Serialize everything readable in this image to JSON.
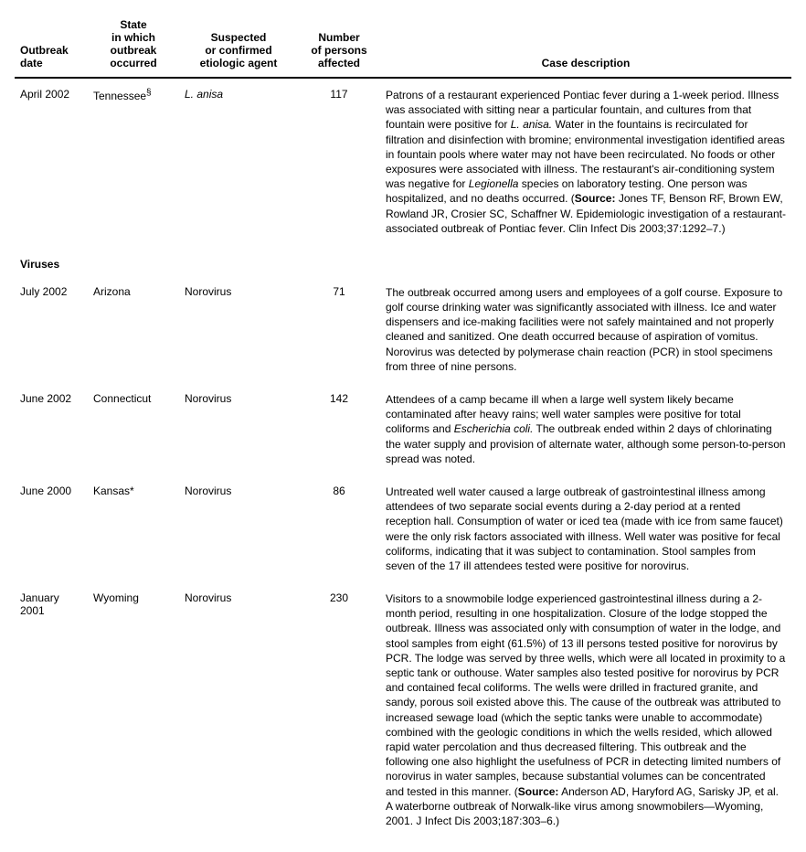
{
  "columns": {
    "date": "Outbreak\ndate",
    "state": "State\nin which\noutbreak\noccurred",
    "agent": "Suspected\nor confirmed\netiologic agent",
    "persons": "Number\nof persons\naffected",
    "desc": "Case description"
  },
  "row1": {
    "date": "April 2002",
    "state": "Tennessee",
    "state_sup": "§",
    "agent": "L. anisa",
    "persons": "117",
    "d1": "Patrons of a restaurant experienced Pontiac fever during a 1-week period. Illness was associated with sitting near a particular fountain, and cultures from that fountain were positive for ",
    "d2": "L. anisa.",
    "d3": " Water in the fountains is recirculated for filtration and disinfection with bromine; environmental investigation identified areas in fountain pools where water may not have been recirculated. No foods or other exposures were associated with illness. The restaurant's air-conditioning system was negative for ",
    "d4": "Legionella",
    "d5": " species on laboratory testing. One person was hospitalized, and no deaths occurred. (",
    "d6": "Source:",
    "d7": " Jones TF, Benson RF, Brown EW, Rowland JR, Crosier SC, Schaffner W. Epidemiologic investigation of a restaurant-associated outbreak of Pontiac fever. Clin Infect Dis 2003;37:1292–7.)"
  },
  "section_viruses": "Viruses",
  "row2": {
    "date": "July 2002",
    "state": "Arizona",
    "agent": "Norovirus",
    "persons": "71",
    "desc": "The outbreak occurred among users and employees of a golf course. Exposure to golf course drinking water was significantly associated with illness. Ice and water dispensers and ice-making facilities were not safely maintained and not properly cleaned and sanitized. One death occurred because of aspiration of vomitus. Norovirus was detected by polymerase chain reaction (PCR) in stool specimens from three of nine persons."
  },
  "row3": {
    "date": "June 2002",
    "state": "Connecticut",
    "agent": "Norovirus",
    "persons": "142",
    "d1": "Attendees of a camp became ill when a large well system likely became contaminated after heavy rains; well water samples were positive for total coliforms and ",
    "d2": "Escherichia coli.",
    "d3": " The outbreak ended within 2 days of chlorinating the water supply and provision of alternate water, although some person-to-person spread was noted."
  },
  "row4": {
    "date": "June 2000",
    "state": "Kansas*",
    "agent": "Norovirus",
    "persons": "86",
    "desc": "Untreated well water caused a large outbreak of gastrointestinal illness among attendees of two separate social events during a 2-day period at a rented reception hall. Consumption of water or iced tea (made with ice from same faucet) were the only risk factors associated with illness. Well water was positive for fecal coliforms, indicating that it was subject to contamination. Stool samples from seven of the 17 ill attendees tested were positive for norovirus."
  },
  "row5": {
    "date": "January 2001",
    "state": "Wyoming",
    "agent": "Norovirus",
    "persons": "230",
    "d1": "Visitors to a snowmobile lodge experienced gastrointestinal illness during a 2-month period, resulting in one hospitalization. Closure of the lodge stopped the outbreak. Illness was associated only with consumption of water in the lodge, and stool samples from eight (61.5%) of 13 ill persons tested positive for norovirus by PCR. The lodge was served by three wells, which were all located in proximity to a septic tank or outhouse. Water samples also tested positive for norovirus by PCR and contained fecal coliforms. The wells were drilled in fractured granite, and sandy, porous soil existed above this. The cause of the outbreak was attributed to increased sewage load (which the septic tanks were unable to accommodate) combined with the geologic conditions in which the wells resided, which allowed rapid water percolation and thus decreased filtering. This outbreak and the following one also highlight the usefulness of PCR in detecting limited numbers of norovirus in water samples, because substantial volumes can be concentrated and tested in this manner. (",
    "d2": "Source:",
    "d3": " Anderson AD, Haryford AG, Sarisky JP, et al. A waterborne outbreak of Norwalk-like virus among snowmobilers—Wyoming, 2001. J Infect Dis 2003;187:303–6.)"
  }
}
